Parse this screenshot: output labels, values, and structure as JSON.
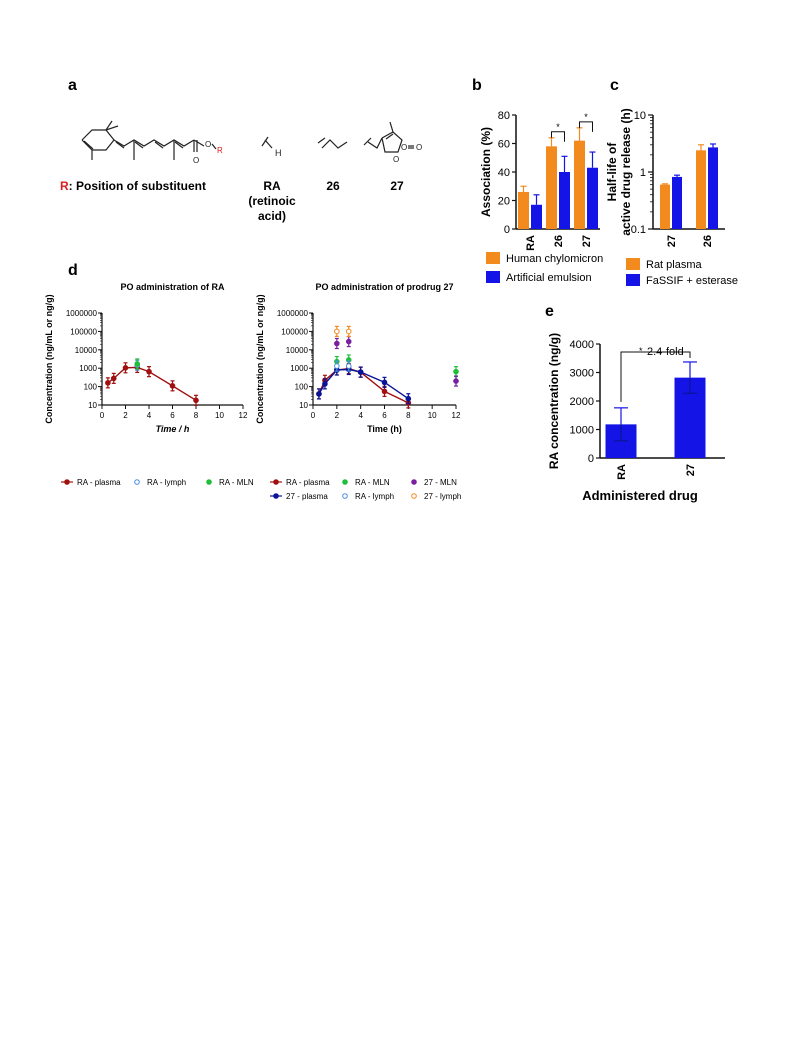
{
  "colors": {
    "orange": "#f28a1e",
    "blue": "#1414e6",
    "dark_red": "#a01010",
    "navy": "#0a1496",
    "green": "#1fbf3a",
    "light_blue": "#4a8fe0",
    "purple": "#7a1fa0",
    "red_label": "#e01b1b",
    "axis": "#111111"
  },
  "panels": {
    "a": {
      "label": "a",
      "substituent_prefix": "R",
      "substituent_text": ": Position of substituent",
      "r_mark": "R",
      "h_mark": "H",
      "o_mark": "O",
      "compounds": [
        "RA",
        "(retinoic",
        "acid)",
        "26",
        "27"
      ]
    },
    "b": {
      "label": "b"
    },
    "c": {
      "label": "c"
    },
    "d": {
      "label": "d"
    },
    "e": {
      "label": "e"
    }
  },
  "chart_data": [
    {
      "id": "b",
      "type": "bar",
      "title": "",
      "ylabel": "Association (%)",
      "xlabel": "",
      "categories": [
        "RA",
        "26",
        "27"
      ],
      "ylim": [
        0,
        80
      ],
      "yticks": [
        "0",
        "20",
        "40",
        "60",
        "80"
      ],
      "series": [
        {
          "name": "Human chylomicron",
          "values": [
            26,
            58,
            62
          ],
          "errors": [
            4,
            6,
            9
          ]
        },
        {
          "name": "Artificial emulsion",
          "values": [
            17,
            40,
            43
          ],
          "errors": [
            7,
            11,
            11
          ]
        }
      ],
      "significance": [
        "*",
        "*"
      ],
      "legend": "bottom"
    },
    {
      "id": "c",
      "type": "bar",
      "title": "",
      "ylabel": "Half-life of active drug release (h)",
      "ylabel_lines": [
        "Half-life of",
        "active drug release (h)"
      ],
      "categories": [
        "27",
        "26"
      ],
      "yscale": "log",
      "ylim": [
        0.1,
        10
      ],
      "yticks": [
        "0.1",
        "1",
        "10"
      ],
      "series": [
        {
          "name": "Rat plasma",
          "values": [
            0.6,
            2.4
          ],
          "errors": [
            0.02,
            0.6
          ]
        },
        {
          "name": "FaSSIF + esterase",
          "values": [
            0.82,
            2.7
          ],
          "errors": [
            0.06,
            0.4
          ]
        }
      ],
      "legend": "bottom"
    },
    {
      "id": "d1",
      "type": "line",
      "title": "PO administration of RA",
      "xlabel": "Time / h",
      "ylabel": "Concentration (ng/mL or ng/g)",
      "yscale": "log",
      "xlim": [
        0,
        12
      ],
      "ylim": [
        10,
        1000000
      ],
      "xticks": [
        "0",
        "2",
        "4",
        "6",
        "8",
        "10",
        "12"
      ],
      "yticks": [
        "10",
        "100",
        "1000",
        "10000",
        "100000",
        "1000000"
      ],
      "series": [
        {
          "name": "RA - plasma",
          "marker": "filled",
          "line": true,
          "x": [
            0.5,
            1,
            2,
            3,
            4,
            6,
            8
          ],
          "y": [
            160,
            280,
            1050,
            1100,
            650,
            110,
            18
          ]
        },
        {
          "name": "RA - lymph",
          "marker": "open",
          "line": false,
          "x": [
            3
          ],
          "y": [
            1450
          ]
        },
        {
          "name": "RA - MLN",
          "marker": "filled",
          "line": false,
          "x": [
            3
          ],
          "y": [
            1700
          ]
        }
      ],
      "legend": "bottom"
    },
    {
      "id": "d2",
      "type": "line",
      "title": "PO administration of prodrug 27",
      "xlabel": "Time (h)",
      "ylabel": "Concentration (ng/mL or ng/g)",
      "yscale": "log",
      "xlim": [
        0,
        12
      ],
      "ylim": [
        10,
        1000000
      ],
      "xticks": [
        "0",
        "2",
        "4",
        "6",
        "8",
        "10",
        "12"
      ],
      "yticks": [
        "10",
        "100",
        "1000",
        "10000",
        "100000",
        "1000000"
      ],
      "series": [
        {
          "name": "RA - plasma",
          "marker": "filled",
          "line": true,
          "x": [
            0.5,
            1,
            2,
            3,
            4,
            6,
            8
          ],
          "y": [
            40,
            220,
            800,
            950,
            600,
            55,
            13
          ]
        },
        {
          "name": "RA - MLN",
          "marker": "filled",
          "line": false,
          "x": [
            2,
            3,
            12
          ],
          "y": [
            2300,
            2800,
            650
          ]
        },
        {
          "name": "27 - MLN",
          "marker": "filled",
          "line": false,
          "x": [
            2,
            3,
            12
          ],
          "y": [
            22000,
            28000,
            200
          ]
        },
        {
          "name": "27 - plasma",
          "marker": "filled",
          "line": true,
          "x": [
            0.5,
            1,
            2,
            3,
            4,
            6,
            8
          ],
          "y": [
            40,
            140,
            800,
            850,
            620,
            170,
            22
          ]
        },
        {
          "name": "RA - lymph",
          "marker": "open",
          "line": false,
          "x": [
            2,
            3
          ],
          "y": [
            1300,
            1300
          ]
        },
        {
          "name": "27 - lymph",
          "marker": "open",
          "line": false,
          "x": [
            2,
            3
          ],
          "y": [
            100000,
            100000
          ]
        }
      ],
      "legend": "bottom"
    },
    {
      "id": "e",
      "type": "bar",
      "ylabel": "RA concentration (ng/g)",
      "xlabel": "Administered drug",
      "categories": [
        "RA",
        "27"
      ],
      "ylim": [
        0,
        4000
      ],
      "yticks": [
        "0",
        "1000",
        "2000",
        "3000",
        "4000"
      ],
      "values": [
        1180,
        2820
      ],
      "errors": [
        580,
        550
      ],
      "annotation": "2.4-fold",
      "significance": "*"
    }
  ]
}
